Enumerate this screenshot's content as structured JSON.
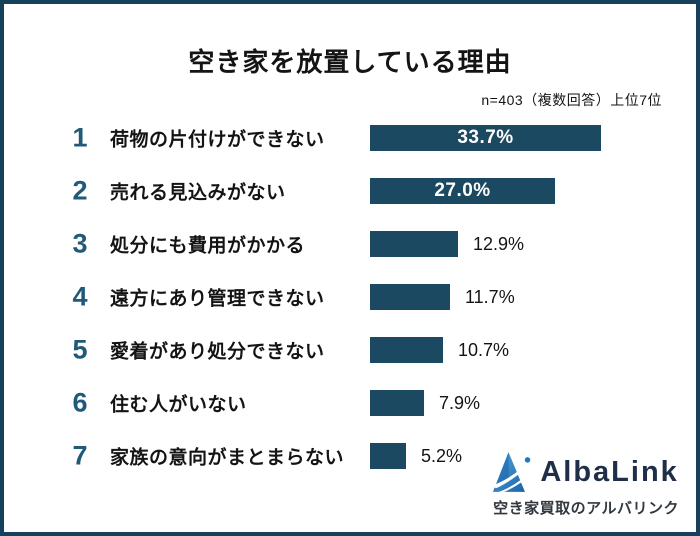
{
  "title": "空き家を放置している理由",
  "subtitle": "n=403（複数回答）上位7位",
  "chart_data": {
    "type": "bar",
    "orientation": "horizontal",
    "title": "空き家を放置している理由",
    "note": "n=403（複数回答）上位7位",
    "ranks": [
      "1",
      "2",
      "3",
      "4",
      "5",
      "6",
      "7"
    ],
    "categories": [
      "荷物の片付けができない",
      "売れる見込みがない",
      "処分にも費用がかかる",
      "遠方にあり管理できない",
      "愛着があり処分できない",
      "住む人がいない",
      "家族の意向がまとまらない"
    ],
    "values": [
      33.7,
      27.0,
      12.9,
      11.7,
      10.7,
      7.9,
      5.2
    ],
    "value_labels": [
      "33.7%",
      "27.0%",
      "12.9%",
      "11.7%",
      "10.7%",
      "7.9%",
      "5.2%"
    ],
    "value_label_position": [
      "inside",
      "inside",
      "outside",
      "outside",
      "outside",
      "outside",
      "outside"
    ],
    "xlim": [
      0,
      35
    ],
    "grid": "off",
    "legend": "none"
  },
  "branding": {
    "name": "AlbaLink",
    "tagline": "空き家買取のアルバリンク"
  },
  "colors": {
    "bar": "#1b4961",
    "rank_number": "#215a78",
    "frame_border": "#16405c",
    "value_inside": "#ffffff",
    "value_outside": "#141414",
    "logo_text": "#1f2e49",
    "logo_blue_light": "#55a9e0",
    "logo_blue_dark": "#1a62a8"
  }
}
